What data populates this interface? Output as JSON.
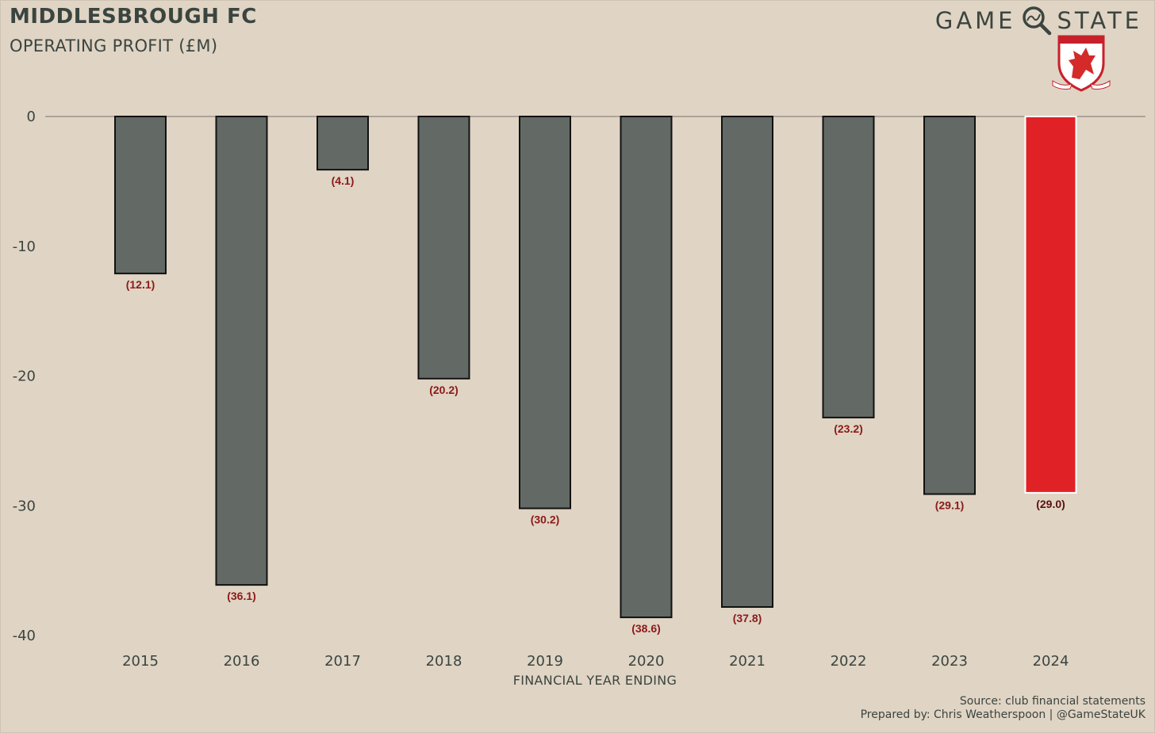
{
  "header": {
    "title": "MIDDLESBROUGH FC",
    "subtitle": "OPERATING PROFIT (£M)",
    "brand_left": "GAME",
    "brand_right": "STATE"
  },
  "footer": {
    "source": "Source: club financial statements",
    "prepared_by": "Prepared by: Chris Weatherspoon | @GameStateUK"
  },
  "colors": {
    "background": "#e0d4c4",
    "bar": "#636a65",
    "highlight_bar": "#e02226",
    "data_label": "#8b1a1a",
    "text": "#3b4540"
  },
  "icons": [
    "magnifier-icon",
    "club-crest-icon"
  ],
  "chart_data": {
    "type": "bar",
    "title": "OPERATING PROFIT (£M)",
    "xlabel": "FINANCIAL YEAR ENDING",
    "ylabel": "",
    "categories": [
      "2015",
      "2016",
      "2017",
      "2018",
      "2019",
      "2020",
      "2021",
      "2022",
      "2023",
      "2024"
    ],
    "values": [
      -12.1,
      -36.1,
      -4.1,
      -20.2,
      -30.2,
      -38.6,
      -37.8,
      -23.2,
      -29.1,
      -29.0
    ],
    "data_labels": [
      "(12.1)",
      "(36.1)",
      "(4.1)",
      "(20.2)",
      "(30.2)",
      "(38.6)",
      "(37.8)",
      "(23.2)",
      "(29.1)",
      "(29.0)"
    ],
    "highlight": "2024",
    "yticks": [
      0,
      -10,
      -20,
      -30,
      -40
    ],
    "ylim": [
      -40,
      0
    ],
    "grid": false
  }
}
